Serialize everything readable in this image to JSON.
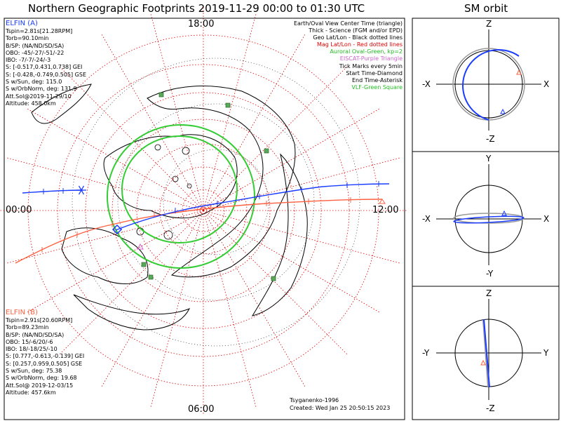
{
  "title": "Northern Geographic Footprints 2019-11-29 00:00 to 01:30 UTC",
  "sm_title": "SM orbit",
  "mlt_labels": {
    "top": "18:00",
    "left": "00:00",
    "right": "12:00",
    "bottom": "06:00"
  },
  "elfin_a": {
    "name": "ELFIN (A)",
    "lines": [
      "Tspin=2.81s[21.28RPM]",
      "Torb=90.10min",
      "B/SP: (NA/ND/SD/SA)",
      "OBO: -45/-27/-51/-22",
      "IBO: -7/-7/-24/-3",
      "S: [-0.517,0.431,0.738] GEI",
      "S: [-0.428,-0.749,0.505] GSE",
      "S w/Sun, deg: 115.0",
      "S w/OrbNorm, deg: 131.9",
      "Att.Sol@2019-11-29/10",
      "Altitude: 458.0km"
    ]
  },
  "elfin_b": {
    "name": "ELFIN (B)",
    "lines": [
      "Tspin=2.91s[20.60RPM]",
      "Torb=89.23min",
      "B/SP: (NA/ND/SD/SA)",
      "OBO: 15/-6/20/-6",
      "IBO: 18/-18/25/-10",
      "S: [0.777,-0.613,-0.139] GEI",
      "S: [0.257,0.959,0.505] GSE",
      "S w/Sun, deg: 75.38",
      "S w/OrbNorm, deg: 19.68",
      "Att.Sol@ 2019-12-03/15",
      "Altitude: 457.6km"
    ]
  },
  "legend": [
    {
      "text": "Earth/Oval View Center Time (triangle)",
      "color": "#000000"
    },
    {
      "text": "Thick - Science (FGM and/or EPD)",
      "color": "#000000"
    },
    {
      "text": "Geo Lat/Lon - Black dotted lines",
      "color": "#000000"
    },
    {
      "text": "Mag Lat/Lon - Red dotted lines",
      "color": "#e00000"
    },
    {
      "text": "Auroral Oval-Green, kp=2",
      "color": "#22bb22"
    },
    {
      "text": "EISCAT-Purple Triangle",
      "color": "#cc66cc"
    },
    {
      "text": "Tick Marks every 5min",
      "color": "#000000"
    },
    {
      "text": "Start Time-Diamond",
      "color": "#000000"
    },
    {
      "text": "End Time-Asterisk",
      "color": "#000000"
    },
    {
      "text": "VLF-Green Square",
      "color": "#22bb22"
    }
  ],
  "footer": {
    "model": "Tsyganenko-1996",
    "created": "Created: Wed Jan 25 20:50:15 2023"
  },
  "sm_panels": [
    {
      "top": "Z",
      "bottom": "-Z",
      "left": "-X",
      "right": "X"
    },
    {
      "top": "Y",
      "bottom": "-Y",
      "left": "-X",
      "right": "X"
    },
    {
      "top": "Z",
      "bottom": "-Z",
      "left": "-Y",
      "right": "Y"
    }
  ],
  "colors": {
    "elfin_a": "#1a3cff",
    "elfin_b": "#ff6040",
    "oval": "#33cc33",
    "grid_mag": "#e00000",
    "vlf": "#4a9a4a"
  },
  "chart_data": {
    "type": "scatter",
    "projection": "north polar, magnetic local time",
    "series": [
      {
        "name": "ELFIN (A)",
        "color": "#1a3cff"
      },
      {
        "name": "ELFIN (B)",
        "color": "#ff6040"
      }
    ],
    "auroral_oval_kp": 2
  }
}
